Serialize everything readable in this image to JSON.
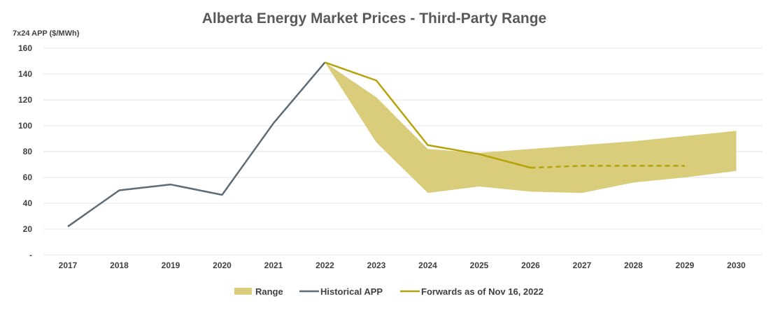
{
  "chart_data": {
    "type": "line",
    "title": "Alberta Energy Market Prices - Third-Party Range",
    "ylabel": "7x24 APP ($/MWh)",
    "xlabel": "",
    "categories": [
      "2017",
      "2018",
      "2019",
      "2020",
      "2021",
      "2022",
      "2023",
      "2024",
      "2025",
      "2026",
      "2027",
      "2028",
      "2029",
      "2030"
    ],
    "ylim": [
      0,
      160
    ],
    "yticks": [
      {
        "value": 0,
        "label": "-"
      },
      {
        "value": 20,
        "label": "20"
      },
      {
        "value": 40,
        "label": "40"
      },
      {
        "value": 60,
        "label": "60"
      },
      {
        "value": 80,
        "label": "80"
      },
      {
        "value": 100,
        "label": "100"
      },
      {
        "value": 120,
        "label": "120"
      },
      {
        "value": 140,
        "label": "140"
      },
      {
        "value": 160,
        "label": "160"
      }
    ],
    "grid": true,
    "legend_position": "bottom",
    "range": {
      "name": "Range",
      "color": "#d9cc7a",
      "x": [
        "2022",
        "2023",
        "2024",
        "2025",
        "2026",
        "2027",
        "2028",
        "2029",
        "2030"
      ],
      "upper": [
        149,
        122,
        82,
        79,
        82,
        85,
        88,
        92,
        96
      ],
      "lower": [
        149,
        87,
        48,
        53,
        49,
        48,
        56,
        60,
        65
      ]
    },
    "series": [
      {
        "name": "Historical APP",
        "color": "#5d6b76",
        "style": "solid",
        "x": [
          "2017",
          "2018",
          "2019",
          "2020",
          "2021",
          "2022"
        ],
        "values": [
          22,
          50,
          54.5,
          46.5,
          102,
          149
        ]
      },
      {
        "name": "Forwards as of Nov 16, 2022",
        "color": "#b5a30a",
        "style": "solid",
        "x": [
          "2022",
          "2023",
          "2024",
          "2025",
          "2026"
        ],
        "values": [
          149,
          135,
          85,
          78,
          67.5
        ]
      },
      {
        "name": "Forwards as of Nov 16, 2022",
        "color": "#b5a30a",
        "style": "dashed",
        "x": [
          "2026",
          "2027",
          "2028",
          "2029"
        ],
        "values": [
          67.5,
          69,
          69,
          69
        ]
      }
    ],
    "legend": [
      "Range",
      "Historical APP",
      "Forwards as of Nov 16, 2022"
    ]
  }
}
